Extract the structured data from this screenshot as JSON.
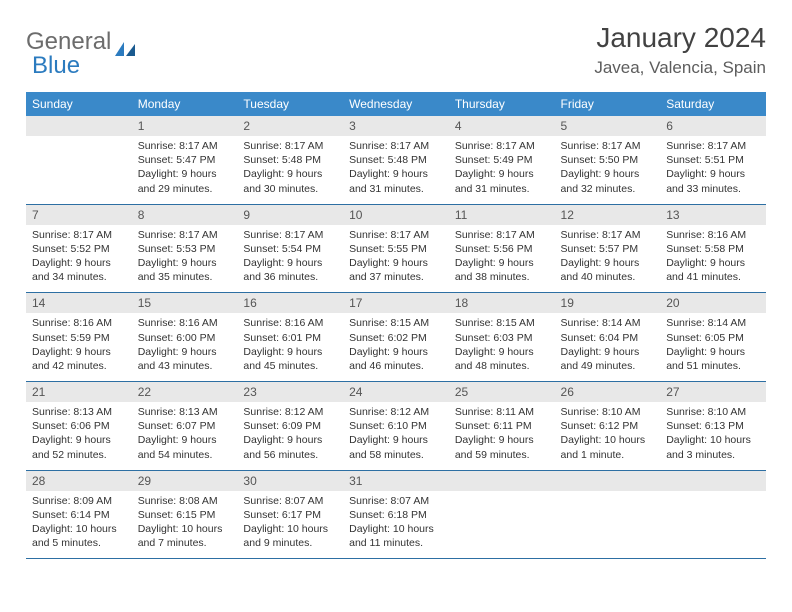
{
  "logo": {
    "text1": "General",
    "text2": "Blue"
  },
  "title": "January 2024",
  "location": "Javea, Valencia, Spain",
  "colors": {
    "header_bg": "#3a89c9",
    "header_text": "#ffffff",
    "daynum_bg": "#e8e8e8",
    "row_border": "#2d6fa3",
    "blue_logo": "#2b7bbf",
    "text": "#333333"
  },
  "day_headers": [
    "Sunday",
    "Monday",
    "Tuesday",
    "Wednesday",
    "Thursday",
    "Friday",
    "Saturday"
  ],
  "weeks": [
    [
      {
        "day": "",
        "sunrise": "",
        "sunset": "",
        "daylight1": "",
        "daylight2": ""
      },
      {
        "day": "1",
        "sunrise": "Sunrise: 8:17 AM",
        "sunset": "Sunset: 5:47 PM",
        "daylight1": "Daylight: 9 hours",
        "daylight2": "and 29 minutes."
      },
      {
        "day": "2",
        "sunrise": "Sunrise: 8:17 AM",
        "sunset": "Sunset: 5:48 PM",
        "daylight1": "Daylight: 9 hours",
        "daylight2": "and 30 minutes."
      },
      {
        "day": "3",
        "sunrise": "Sunrise: 8:17 AM",
        "sunset": "Sunset: 5:48 PM",
        "daylight1": "Daylight: 9 hours",
        "daylight2": "and 31 minutes."
      },
      {
        "day": "4",
        "sunrise": "Sunrise: 8:17 AM",
        "sunset": "Sunset: 5:49 PM",
        "daylight1": "Daylight: 9 hours",
        "daylight2": "and 31 minutes."
      },
      {
        "day": "5",
        "sunrise": "Sunrise: 8:17 AM",
        "sunset": "Sunset: 5:50 PM",
        "daylight1": "Daylight: 9 hours",
        "daylight2": "and 32 minutes."
      },
      {
        "day": "6",
        "sunrise": "Sunrise: 8:17 AM",
        "sunset": "Sunset: 5:51 PM",
        "daylight1": "Daylight: 9 hours",
        "daylight2": "and 33 minutes."
      }
    ],
    [
      {
        "day": "7",
        "sunrise": "Sunrise: 8:17 AM",
        "sunset": "Sunset: 5:52 PM",
        "daylight1": "Daylight: 9 hours",
        "daylight2": "and 34 minutes."
      },
      {
        "day": "8",
        "sunrise": "Sunrise: 8:17 AM",
        "sunset": "Sunset: 5:53 PM",
        "daylight1": "Daylight: 9 hours",
        "daylight2": "and 35 minutes."
      },
      {
        "day": "9",
        "sunrise": "Sunrise: 8:17 AM",
        "sunset": "Sunset: 5:54 PM",
        "daylight1": "Daylight: 9 hours",
        "daylight2": "and 36 minutes."
      },
      {
        "day": "10",
        "sunrise": "Sunrise: 8:17 AM",
        "sunset": "Sunset: 5:55 PM",
        "daylight1": "Daylight: 9 hours",
        "daylight2": "and 37 minutes."
      },
      {
        "day": "11",
        "sunrise": "Sunrise: 8:17 AM",
        "sunset": "Sunset: 5:56 PM",
        "daylight1": "Daylight: 9 hours",
        "daylight2": "and 38 minutes."
      },
      {
        "day": "12",
        "sunrise": "Sunrise: 8:17 AM",
        "sunset": "Sunset: 5:57 PM",
        "daylight1": "Daylight: 9 hours",
        "daylight2": "and 40 minutes."
      },
      {
        "day": "13",
        "sunrise": "Sunrise: 8:16 AM",
        "sunset": "Sunset: 5:58 PM",
        "daylight1": "Daylight: 9 hours",
        "daylight2": "and 41 minutes."
      }
    ],
    [
      {
        "day": "14",
        "sunrise": "Sunrise: 8:16 AM",
        "sunset": "Sunset: 5:59 PM",
        "daylight1": "Daylight: 9 hours",
        "daylight2": "and 42 minutes."
      },
      {
        "day": "15",
        "sunrise": "Sunrise: 8:16 AM",
        "sunset": "Sunset: 6:00 PM",
        "daylight1": "Daylight: 9 hours",
        "daylight2": "and 43 minutes."
      },
      {
        "day": "16",
        "sunrise": "Sunrise: 8:16 AM",
        "sunset": "Sunset: 6:01 PM",
        "daylight1": "Daylight: 9 hours",
        "daylight2": "and 45 minutes."
      },
      {
        "day": "17",
        "sunrise": "Sunrise: 8:15 AM",
        "sunset": "Sunset: 6:02 PM",
        "daylight1": "Daylight: 9 hours",
        "daylight2": "and 46 minutes."
      },
      {
        "day": "18",
        "sunrise": "Sunrise: 8:15 AM",
        "sunset": "Sunset: 6:03 PM",
        "daylight1": "Daylight: 9 hours",
        "daylight2": "and 48 minutes."
      },
      {
        "day": "19",
        "sunrise": "Sunrise: 8:14 AM",
        "sunset": "Sunset: 6:04 PM",
        "daylight1": "Daylight: 9 hours",
        "daylight2": "and 49 minutes."
      },
      {
        "day": "20",
        "sunrise": "Sunrise: 8:14 AM",
        "sunset": "Sunset: 6:05 PM",
        "daylight1": "Daylight: 9 hours",
        "daylight2": "and 51 minutes."
      }
    ],
    [
      {
        "day": "21",
        "sunrise": "Sunrise: 8:13 AM",
        "sunset": "Sunset: 6:06 PM",
        "daylight1": "Daylight: 9 hours",
        "daylight2": "and 52 minutes."
      },
      {
        "day": "22",
        "sunrise": "Sunrise: 8:13 AM",
        "sunset": "Sunset: 6:07 PM",
        "daylight1": "Daylight: 9 hours",
        "daylight2": "and 54 minutes."
      },
      {
        "day": "23",
        "sunrise": "Sunrise: 8:12 AM",
        "sunset": "Sunset: 6:09 PM",
        "daylight1": "Daylight: 9 hours",
        "daylight2": "and 56 minutes."
      },
      {
        "day": "24",
        "sunrise": "Sunrise: 8:12 AM",
        "sunset": "Sunset: 6:10 PM",
        "daylight1": "Daylight: 9 hours",
        "daylight2": "and 58 minutes."
      },
      {
        "day": "25",
        "sunrise": "Sunrise: 8:11 AM",
        "sunset": "Sunset: 6:11 PM",
        "daylight1": "Daylight: 9 hours",
        "daylight2": "and 59 minutes."
      },
      {
        "day": "26",
        "sunrise": "Sunrise: 8:10 AM",
        "sunset": "Sunset: 6:12 PM",
        "daylight1": "Daylight: 10 hours",
        "daylight2": "and 1 minute."
      },
      {
        "day": "27",
        "sunrise": "Sunrise: 8:10 AM",
        "sunset": "Sunset: 6:13 PM",
        "daylight1": "Daylight: 10 hours",
        "daylight2": "and 3 minutes."
      }
    ],
    [
      {
        "day": "28",
        "sunrise": "Sunrise: 8:09 AM",
        "sunset": "Sunset: 6:14 PM",
        "daylight1": "Daylight: 10 hours",
        "daylight2": "and 5 minutes."
      },
      {
        "day": "29",
        "sunrise": "Sunrise: 8:08 AM",
        "sunset": "Sunset: 6:15 PM",
        "daylight1": "Daylight: 10 hours",
        "daylight2": "and 7 minutes."
      },
      {
        "day": "30",
        "sunrise": "Sunrise: 8:07 AM",
        "sunset": "Sunset: 6:17 PM",
        "daylight1": "Daylight: 10 hours",
        "daylight2": "and 9 minutes."
      },
      {
        "day": "31",
        "sunrise": "Sunrise: 8:07 AM",
        "sunset": "Sunset: 6:18 PM",
        "daylight1": "Daylight: 10 hours",
        "daylight2": "and 11 minutes."
      },
      {
        "day": "",
        "sunrise": "",
        "sunset": "",
        "daylight1": "",
        "daylight2": ""
      },
      {
        "day": "",
        "sunrise": "",
        "sunset": "",
        "daylight1": "",
        "daylight2": ""
      },
      {
        "day": "",
        "sunrise": "",
        "sunset": "",
        "daylight1": "",
        "daylight2": ""
      }
    ]
  ]
}
